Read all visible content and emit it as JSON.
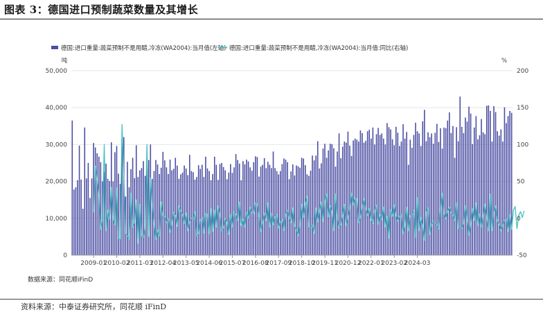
{
  "figure_title": "图表 3：德国进口预制蔬菜数量及其增长",
  "source_note": "数据来源：同花顺iFinD",
  "footer_text": "资料来源：中泰证券研究所，同花顺 iFinD",
  "colors": {
    "bar": "#4b4ea3",
    "line": "#45c1c0",
    "grid": "#e6e6e6",
    "axis": "#999999"
  },
  "chart_data": {
    "type": "bar+line",
    "x_tick_labels": [
      "2009-01",
      "2010-02",
      "2011-03",
      "2012-04",
      "2013-05",
      "2014-06",
      "2015-07",
      "2016-08",
      "2017-09",
      "2018-10",
      "2019-11",
      "2020-12",
      "2022-01",
      "2023-02",
      "2024-03"
    ],
    "start_month": "2008-01",
    "end_month": "2024-03",
    "y_left": {
      "unit": "吨",
      "min": 0,
      "max": 50000,
      "ticks": [
        "0",
        "10,000",
        "20,000",
        "30,000",
        "40,000",
        "50,000"
      ]
    },
    "y_right": {
      "unit": "%",
      "min": -50,
      "max": 200,
      "ticks": [
        "-50",
        "0",
        "50",
        "100",
        "150",
        "200"
      ]
    },
    "legend_position": "top-left",
    "grid": true,
    "series": [
      {
        "name": "德国:进口重量:蔬菜预制不是用醋,冷冻(WA2004):当月值(左轴)",
        "type": "bar",
        "axis": "left",
        "values": [
          36500,
          17800,
          18400,
          20300,
          29700,
          20500,
          12600,
          34600,
          20800,
          25000,
          15500,
          20800,
          30400,
          29200,
          27600,
          26700,
          25200,
          20000,
          22600,
          24800,
          20700,
          20100,
          30600,
          20000,
          27900,
          29600,
          22100,
          19300,
          31100,
          32000,
          15900,
          25300,
          18400,
          23300,
          26400,
          20900,
          29800,
          21200,
          23000,
          23600,
          25500,
          21500,
          24000,
          25800,
          30000,
          20700,
          22800,
          25800,
          24600,
          22000,
          23700,
          28000,
          25700,
          23800,
          22000,
          25900,
          23000,
          23400,
          26400,
          24300,
          20700,
          21900,
          22400,
          24300,
          23500,
          21700,
          27200,
          22800,
          22500,
          20500,
          21200,
          24400,
          23400,
          24500,
          21200,
          26700,
          23500,
          22800,
          20300,
          22000,
          26700,
          24500,
          20400,
          24700,
          25000,
          23900,
          23000,
          20600,
          22400,
          24700,
          22300,
          23800,
          27400,
          25800,
          24800,
          20300,
          25500,
          24600,
          25900,
          25400,
          23800,
          22900,
          25200,
          26800,
          26600,
          21300,
          24000,
          24500,
          26300,
          23600,
          25300,
          24500,
          23600,
          28100,
          23600,
          22800,
          21900,
          22800,
          24700,
          26200,
          25900,
          25200,
          20600,
          22700,
          24600,
          21600,
          24300,
          24100,
          23700,
          26400,
          26200,
          24400,
          21900,
          21500,
          22900,
          27000,
          25700,
          27000,
          30900,
          23500,
          24900,
          28900,
          30200,
          26400,
          28400,
          30200,
          30100,
          29000,
          24000,
          28100,
          33000,
          26300,
          29400,
          30800,
          30500,
          33500,
          29700,
          26900,
          31100,
          31600,
          31300,
          30800,
          33800,
          33100,
          30500,
          31000,
          33600,
          34000,
          31600,
          34600,
          30000,
          32800,
          34500,
          32600,
          33000,
          31600,
          30000,
          35800,
          34700,
          34100,
          31400,
          29800,
          34800,
          33200,
          29600,
          30800,
          35500,
          31600,
          33400,
          24500,
          31300,
          29100,
          32600,
          35900,
          33600,
          33000,
          29600,
          36300,
          39400,
          30900,
          33300,
          32000,
          33000,
          30200,
          33200,
          35600,
          30700,
          34400,
          28900,
          34600,
          34400,
          36500,
          38700,
          33100,
          35000,
          26400,
          34700,
          30900,
          43000,
          34800,
          33100,
          37300,
          36200,
          40300,
          38400,
          30100,
          34600,
          37700,
          31400,
          32500,
          36900,
          33300,
          32800,
          40500,
          40600,
          39100,
          30800,
          40400,
          38800,
          33600,
          32400,
          34100,
          30800,
          40100,
          35800,
          37700,
          39100,
          38600
        ]
      },
      {
        "name": "德国:进口重量:蔬菜预制不是用醋,冷冻(WA2004):当月值:同比(右轴)",
        "type": "line",
        "axis": "right",
        "values": [
          null,
          null,
          null,
          null,
          null,
          null,
          null,
          null,
          null,
          null,
          null,
          null,
          8,
          71,
          53,
          31,
          -15,
          -2,
          100,
          -17,
          11,
          -1,
          42,
          -1,
          -9,
          41,
          -28,
          -28,
          127,
          56,
          -21,
          -24,
          -28,
          34,
          -12,
          -6,
          25,
          -34,
          19,
          -24,
          -26,
          -12,
          100,
          -25,
          55,
          16,
          -8,
          -29,
          -16,
          -24,
          22,
          4,
          3,
          -6,
          0,
          -19,
          -7,
          8,
          4,
          -11,
          17,
          10,
          5,
          -7,
          7,
          -17,
          -5,
          0,
          -1,
          9,
          -24,
          -21,
          -1,
          1,
          -20,
          7,
          6,
          -21,
          13,
          -18,
          11,
          -12,
          17,
          5,
          -17,
          -13,
          0,
          -6,
          -22,
          5,
          -12,
          9,
          6,
          -3,
          22,
          -10,
          -1,
          -12,
          8,
          0,
          15,
          7,
          6,
          21,
          20,
          4,
          -18,
          -6,
          7,
          -3,
          21,
          -12,
          7,
          -9,
          2,
          5,
          -13,
          -4,
          -1,
          -17,
          5,
          11,
          0,
          -6,
          14,
          -11,
          -16,
          -24,
          -9,
          19,
          1,
          20,
          30,
          -12,
          -12,
          -9,
          -21,
          14,
          -5,
          10,
          22,
          -5,
          23,
          33,
          2,
          17,
          9,
          -17,
          33,
          0,
          -13,
          -9,
          3,
          19,
          -10,
          1,
          14,
          34,
          18,
          28,
          27,
          -6,
          1,
          16,
          27,
          13,
          4,
          13,
          -3,
          -7,
          10,
          18,
          -8,
          5,
          -2,
          15,
          -12,
          3,
          -27,
          12,
          3,
          18,
          4,
          -4,
          3,
          5,
          -21,
          -10,
          15,
          -17,
          4,
          5,
          11,
          -26,
          28,
          -17,
          1,
          -10,
          -30,
          8,
          14,
          -22,
          -8,
          -5,
          -7,
          -9,
          -14,
          13,
          34,
          7,
          -1,
          9,
          15,
          7,
          5,
          -3,
          21,
          -14,
          -12,
          -14,
          -7,
          17,
          -2,
          -23,
          -8,
          13,
          -3,
          21,
          -10,
          6,
          -12,
          3,
          19,
          0,
          -17,
          33,
          -17,
          7,
          17,
          -4,
          -8,
          -17,
          -10,
          -2,
          0,
          -18,
          5,
          -15,
          11,
          16,
          -14,
          4,
          9,
          1,
          10
        ]
      }
    ]
  }
}
